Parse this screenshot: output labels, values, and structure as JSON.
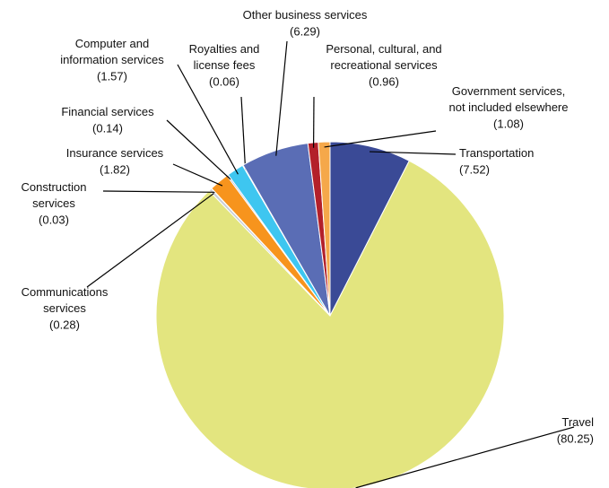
{
  "chart_data": {
    "type": "pie",
    "categories": [
      "Transportation",
      "Travel",
      "Communications\nservices",
      "Construction\nservices",
      "Insurance services",
      "Financial services",
      "Computer and\ninformation services",
      "Royalties and\nlicense fees",
      "Other business services",
      "Personal, cultural, and\nrecreational services",
      "Government services,\nnot included elsewhere"
    ],
    "values": [
      7.52,
      80.25,
      0.28,
      0.03,
      1.82,
      0.14,
      1.57,
      0.06,
      6.29,
      0.96,
      1.08
    ],
    "value_labels": [
      "(7.52)",
      "(80.25)",
      "(0.28)",
      "(0.03)",
      "(1.82)",
      "(0.14)",
      "(1.57)",
      "(0.06)",
      "(6.29)",
      "(0.96)",
      "(1.08)"
    ],
    "colors": [
      "#3a4a96",
      "#e3e57f",
      "#c9cfd8",
      "#f4f4f4",
      "#f7941d",
      "#9aa2c8",
      "#3ec6f0",
      "#d9dde6",
      "#5a6db5",
      "#b3202a",
      "#f5a84a"
    ]
  }
}
